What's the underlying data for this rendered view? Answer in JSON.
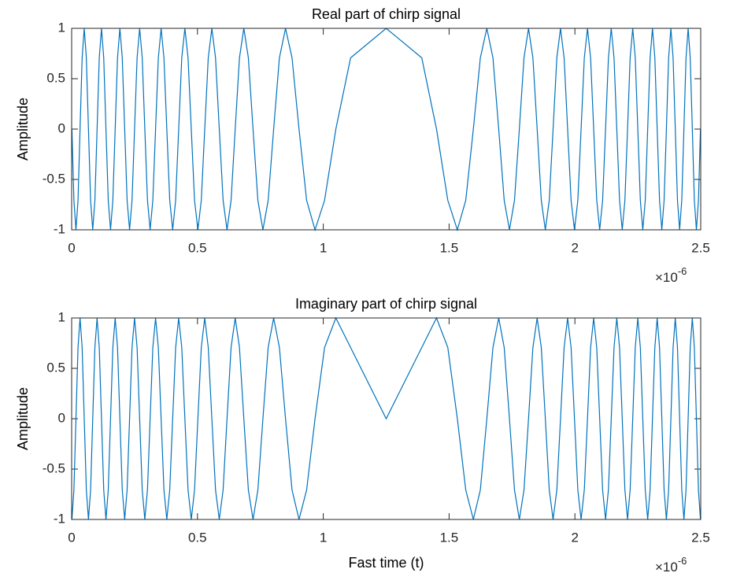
{
  "chart_data": [
    {
      "type": "line",
      "title": "Real part of chirp signal",
      "ylabel": "Amplitude",
      "x_multiplier": "×10",
      "x_exponent": "-6",
      "color": "#0072bd",
      "xlim": [
        0,
        2.5
      ],
      "ylim": [
        -1,
        1
      ],
      "xticks": [
        0,
        0.5,
        1,
        1.5,
        2,
        2.5
      ],
      "yticks": [
        -1,
        -0.5,
        0,
        0.5,
        1
      ],
      "grid": false,
      "x": [
        0.001,
        0.009,
        0.0171,
        0.0253,
        0.0334,
        0.0417,
        0.05,
        0.0584,
        0.0668,
        0.0753,
        0.0838,
        0.0924,
        0.1011,
        0.1098,
        0.1186,
        0.1275,
        0.1364,
        0.1455,
        0.1546,
        0.1637,
        0.173,
        0.1823,
        0.1917,
        0.2012,
        0.2108,
        0.2204,
        0.2302,
        0.24,
        0.25,
        0.2601,
        0.2702,
        0.2805,
        0.2908,
        0.3013,
        0.3119,
        0.3226,
        0.3335,
        0.3445,
        0.3556,
        0.3668,
        0.3782,
        0.3898,
        0.4015,
        0.4133,
        0.4254,
        0.4376,
        0.45,
        0.4626,
        0.4754,
        0.4884,
        0.5017,
        0.5152,
        0.5289,
        0.5429,
        0.5572,
        0.5718,
        0.5867,
        0.6019,
        0.6175,
        0.6336,
        0.65,
        0.6669,
        0.6843,
        0.7023,
        0.7208,
        0.7401,
        0.7601,
        0.781,
        0.8028,
        0.8257,
        0.85,
        0.8758,
        0.9036,
        0.9338,
        0.9672,
        1.0051,
        1.05,
        1.1086,
        1.25,
        1.3914,
        1.45,
        1.4949,
        1.5328,
        1.5662,
        1.5964,
        1.6242,
        1.65,
        1.6743,
        1.6972,
        1.719,
        1.7399,
        1.7599,
        1.7792,
        1.7977,
        1.8157,
        1.8331,
        1.85,
        1.8664,
        1.8825,
        1.8981,
        1.9133,
        1.9282,
        1.9428,
        1.9571,
        1.9711,
        1.9848,
        1.9983,
        2.0116,
        2.0246,
        2.0374,
        2.05,
        2.0624,
        2.0746,
        2.0867,
        2.0985,
        2.1102,
        2.1218,
        2.1332,
        2.1444,
        2.1555,
        2.1665,
        2.1774,
        2.1881,
        2.1987,
        2.2092,
        2.2195,
        2.2298,
        2.2399,
        2.25,
        2.26,
        2.2698,
        2.2796,
        2.2892,
        2.2988,
        2.3083,
        2.3177,
        2.327,
        2.3363,
        2.3454,
        2.3545,
        2.3636,
        2.3725,
        2.3814,
        2.3902,
        2.3989,
        2.4076,
        2.4162,
        2.4247,
        2.4332,
        2.4416,
        2.45,
        2.4583,
        2.4666,
        2.4747,
        2.4829,
        2.491,
        2.499
      ],
      "values": [
        0,
        -0.7071,
        -1,
        -0.7071,
        0,
        0.7071,
        1,
        0.7071,
        0,
        -0.7071,
        -1,
        -0.7071,
        0,
        0.7071,
        1,
        0.7071,
        0,
        -0.7071,
        -1,
        -0.7071,
        0,
        0.7071,
        1,
        0.7071,
        0,
        -0.7071,
        -1,
        -0.7071,
        0,
        0.7071,
        1,
        0.7071,
        0,
        -0.7071,
        -1,
        -0.7071,
        0,
        0.7071,
        1,
        0.7071,
        0,
        -0.7071,
        -1,
        -0.7071,
        0,
        0.7071,
        1,
        0.7071,
        0,
        -0.7071,
        -1,
        -0.7071,
        0,
        0.7071,
        1,
        0.7071,
        0,
        -0.7071,
        -1,
        -0.7071,
        0,
        0.7071,
        1,
        0.7071,
        0,
        -0.7071,
        -1,
        -0.7071,
        0,
        0.7071,
        1,
        0.7071,
        0,
        -0.7071,
        -1,
        -0.7071,
        0,
        0.7071,
        1,
        0.7071,
        0,
        -0.7071,
        -1,
        -0.7071,
        0,
        0.7071,
        1,
        0.7071,
        0,
        -0.7071,
        -1,
        -0.7071,
        0,
        0.7071,
        1,
        0.7071,
        0,
        -0.7071,
        -1,
        -0.7071,
        0,
        0.7071,
        1,
        0.7071,
        0,
        -0.7071,
        -1,
        -0.7071,
        0,
        0.7071,
        1,
        0.7071,
        0,
        -0.7071,
        -1,
        -0.7071,
        0,
        0.7071,
        1,
        0.7071,
        0,
        -0.7071,
        -1,
        -0.7071,
        0,
        0.7071,
        1,
        0.7071,
        0,
        -0.7071,
        -1,
        -0.7071,
        0,
        0.7071,
        1,
        0.7071,
        0,
        -0.7071,
        -1,
        -0.7071,
        0,
        0.7071,
        1,
        0.7071,
        0,
        -0.7071,
        -1,
        -0.7071,
        0,
        0.7071,
        1,
        0.7071,
        0,
        -0.7071,
        -1,
        -0.7071,
        0
      ]
    },
    {
      "type": "line",
      "title": "Imaginary part of chirp signal",
      "ylabel": "Amplitude",
      "xlabel": "Fast time (t)",
      "x_multiplier": "×10",
      "x_exponent": "-6",
      "color": "#0072bd",
      "xlim": [
        0,
        2.5
      ],
      "ylim": [
        -1,
        1
      ],
      "xticks": [
        0,
        0.5,
        1,
        1.5,
        2,
        2.5
      ],
      "yticks": [
        -1,
        -0.5,
        0,
        0.5,
        1
      ],
      "grid": false,
      "x": [
        0.001,
        0.009,
        0.0171,
        0.0253,
        0.0334,
        0.0417,
        0.05,
        0.0584,
        0.0668,
        0.0753,
        0.0838,
        0.0924,
        0.1011,
        0.1098,
        0.1186,
        0.1275,
        0.1364,
        0.1455,
        0.1546,
        0.1637,
        0.173,
        0.1823,
        0.1917,
        0.2012,
        0.2108,
        0.2204,
        0.2302,
        0.24,
        0.25,
        0.2601,
        0.2702,
        0.2805,
        0.2908,
        0.3013,
        0.3119,
        0.3226,
        0.3335,
        0.3445,
        0.3556,
        0.3668,
        0.3782,
        0.3898,
        0.4015,
        0.4133,
        0.4254,
        0.4376,
        0.45,
        0.4626,
        0.4754,
        0.4884,
        0.5017,
        0.5152,
        0.5289,
        0.5429,
        0.5572,
        0.5718,
        0.5867,
        0.6019,
        0.6175,
        0.6336,
        0.65,
        0.6669,
        0.6843,
        0.7023,
        0.7208,
        0.7401,
        0.7601,
        0.781,
        0.8028,
        0.8257,
        0.85,
        0.8758,
        0.9036,
        0.9338,
        0.9672,
        1.0051,
        1.05,
        1.1086,
        1.25,
        1.3914,
        1.45,
        1.4949,
        1.5328,
        1.5662,
        1.5964,
        1.6242,
        1.65,
        1.6743,
        1.6972,
        1.719,
        1.7399,
        1.7599,
        1.7792,
        1.7977,
        1.8157,
        1.8331,
        1.85,
        1.8664,
        1.8825,
        1.8981,
        1.9133,
        1.9282,
        1.9428,
        1.9571,
        1.9711,
        1.9848,
        1.9983,
        2.0116,
        2.0246,
        2.0374,
        2.05,
        2.0624,
        2.0746,
        2.0867,
        2.0985,
        2.1102,
        2.1218,
        2.1332,
        2.1444,
        2.1555,
        2.1665,
        2.1774,
        2.1881,
        2.1987,
        2.2092,
        2.2195,
        2.2298,
        2.2399,
        2.25,
        2.26,
        2.2698,
        2.2796,
        2.2892,
        2.2988,
        2.3083,
        2.3177,
        2.327,
        2.3363,
        2.3454,
        2.3545,
        2.3636,
        2.3725,
        2.3814,
        2.3902,
        2.3989,
        2.4076,
        2.4162,
        2.4247,
        2.4332,
        2.4416,
        2.45,
        2.4583,
        2.4666,
        2.4747,
        2.4829,
        2.491,
        2.499
      ],
      "values": [
        -1,
        -0.7071,
        0,
        0.7071,
        1,
        0.7071,
        0,
        -0.7071,
        -1,
        -0.7071,
        0,
        0.7071,
        1,
        0.7071,
        0,
        -0.7071,
        -1,
        -0.7071,
        0,
        0.7071,
        1,
        0.7071,
        0,
        -0.7071,
        -1,
        -0.7071,
        0,
        0.7071,
        1,
        0.7071,
        0,
        -0.7071,
        -1,
        -0.7071,
        0,
        0.7071,
        1,
        0.7071,
        0,
        -0.7071,
        -1,
        -0.7071,
        0,
        0.7071,
        1,
        0.7071,
        0,
        -0.7071,
        -1,
        -0.7071,
        0,
        0.7071,
        1,
        0.7071,
        0,
        -0.7071,
        -1,
        -0.7071,
        0,
        0.7071,
        1,
        0.7071,
        0,
        -0.7071,
        -1,
        -0.7071,
        0,
        0.7071,
        1,
        0.7071,
        0,
        -0.7071,
        -1,
        -0.7071,
        0,
        0.7071,
        1,
        0.7071,
        0,
        0.7071,
        1,
        0.7071,
        0,
        -0.7071,
        -1,
        -0.7071,
        0,
        0.7071,
        1,
        0.7071,
        0,
        -0.7071,
        -1,
        -0.7071,
        0,
        0.7071,
        1,
        0.7071,
        0,
        -0.7071,
        -1,
        -0.7071,
        0,
        0.7071,
        1,
        0.7071,
        0,
        -0.7071,
        -1,
        -0.7071,
        0,
        0.7071,
        1,
        0.7071,
        0,
        -0.7071,
        -1,
        -0.7071,
        0,
        0.7071,
        1,
        0.7071,
        0,
        -0.7071,
        -1,
        -0.7071,
        0,
        0.7071,
        1,
        0.7071,
        0,
        -0.7071,
        -1,
        -0.7071,
        0,
        0.7071,
        1,
        0.7071,
        0,
        -0.7071,
        -1,
        -0.7071,
        0,
        0.7071,
        1,
        0.7071,
        0,
        -0.7071,
        -1,
        -0.7071,
        0,
        0.7071,
        1,
        0.7071,
        0,
        -0.7071,
        -1
      ]
    }
  ]
}
